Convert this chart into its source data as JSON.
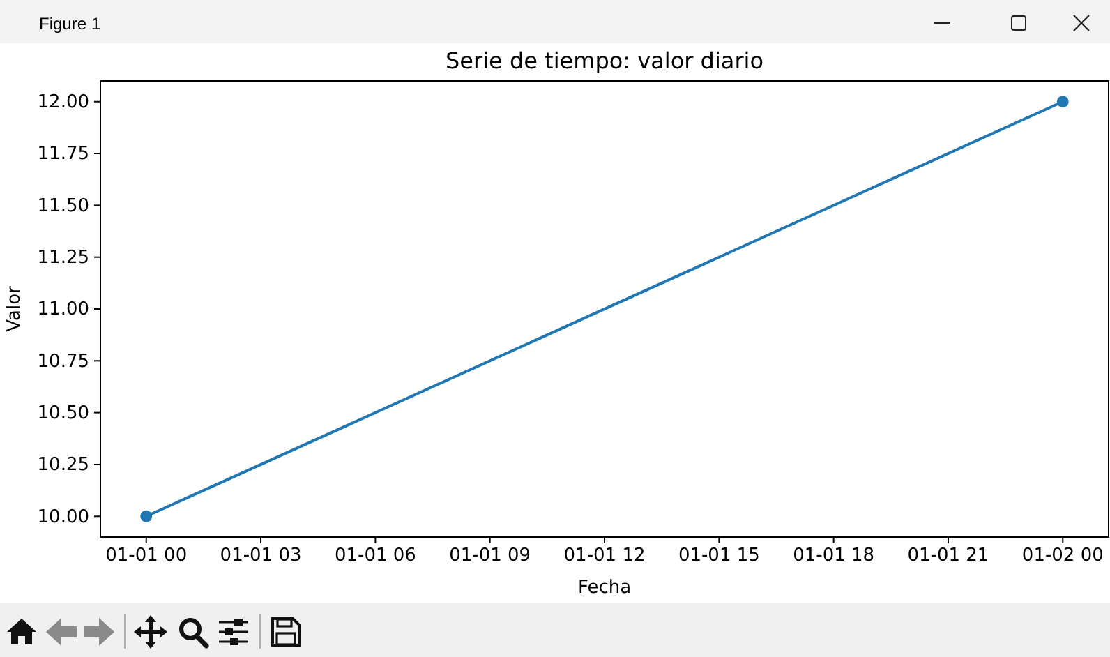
{
  "chart_data": {
    "type": "line",
    "title": "Serie de tiempo: valor diario",
    "xlabel": "Fecha",
    "ylabel": "Valor",
    "annotations": [
      "Figure 1"
    ],
    "categories": [
      "01-01 00",
      "01-01 03",
      "01-01 06",
      "01-01 09",
      "01-01 12",
      "01-01 15",
      "01-01 18",
      "01-01 21",
      "01-02 00"
    ],
    "series": [
      {
        "color": "#1f77b4",
        "x": [
          "01-01 00",
          "01-02 00"
        ],
        "values": [
          10,
          12
        ]
      }
    ],
    "marker": "circle",
    "ylim": [
      9.9,
      12.1
    ],
    "yticks": [
      {
        "value": 10,
        "label": "10.00"
      },
      {
        "value": 10.25,
        "label": "10.25"
      },
      {
        "value": 10.5,
        "label": "10.50"
      },
      {
        "value": 10.75,
        "label": "10.75"
      },
      {
        "value": 11,
        "label": "11.00"
      },
      {
        "value": 11.25,
        "label": "11.25"
      },
      {
        "value": 11.5,
        "label": "11.50"
      },
      {
        "value": 11.75,
        "label": "11.75"
      },
      {
        "value": 12,
        "label": "12.00"
      }
    ]
  }
}
